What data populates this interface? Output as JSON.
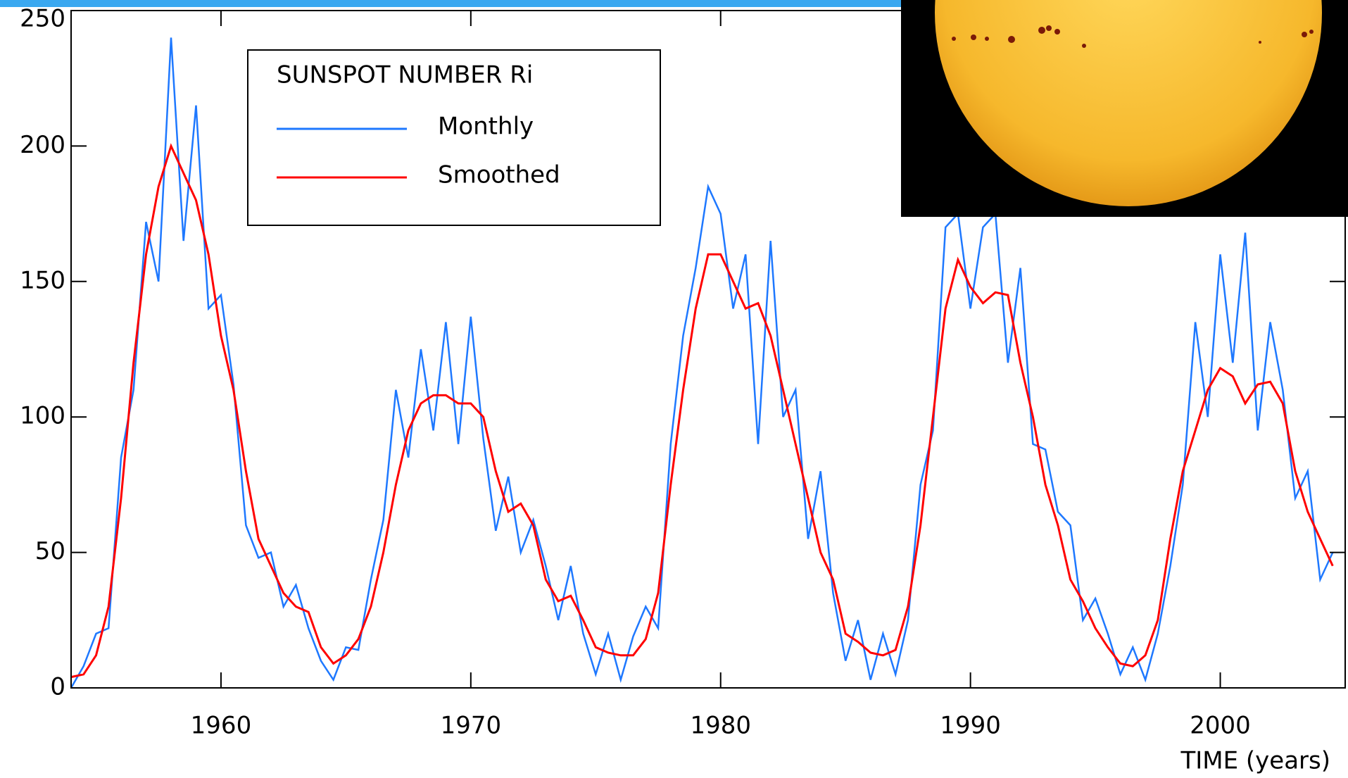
{
  "chart_data": {
    "type": "line",
    "legend_title": "SUNSPOT NUMBER Ri",
    "x_label": "TIME (years)",
    "x": [
      1954,
      1954.5,
      1955,
      1955.5,
      1956,
      1956.5,
      1957,
      1957.5,
      1958,
      1958.5,
      1959,
      1959.5,
      1960,
      1960.5,
      1961,
      1961.5,
      1962,
      1962.5,
      1963,
      1963.5,
      1964,
      1964.5,
      1965,
      1965.5,
      1966,
      1966.5,
      1967,
      1967.5,
      1968,
      1968.5,
      1969,
      1969.5,
      1970,
      1970.5,
      1971,
      1971.5,
      1972,
      1972.5,
      1973,
      1973.5,
      1974,
      1974.5,
      1975,
      1975.5,
      1976,
      1976.5,
      1977,
      1977.5,
      1978,
      1978.5,
      1979,
      1979.5,
      1980,
      1980.5,
      1981,
      1981.5,
      1982,
      1982.5,
      1983,
      1983.5,
      1984,
      1984.5,
      1985,
      1985.5,
      1986,
      1986.5,
      1987,
      1987.5,
      1988,
      1988.5,
      1989,
      1989.5,
      1990,
      1990.5,
      1991,
      1991.5,
      1992,
      1992.5,
      1993,
      1993.5,
      1994,
      1994.5,
      1995,
      1995.5,
      1996,
      1996.5,
      1997,
      1997.5,
      1998,
      1998.5,
      1999,
      1999.5,
      2000,
      2000.5,
      2001,
      2001.5,
      2002,
      2002.5,
      2003,
      2003.5,
      2004,
      2004.5
    ],
    "series": [
      {
        "name": "Monthly",
        "color": "#1e78ff",
        "values": [
          0,
          8,
          20,
          22,
          85,
          110,
          172,
          150,
          240,
          165,
          215,
          140,
          145,
          112,
          60,
          48,
          50,
          30,
          38,
          22,
          10,
          3,
          15,
          14,
          40,
          62,
          110,
          85,
          125,
          95,
          135,
          90,
          137,
          92,
          58,
          78,
          50,
          62,
          45,
          25,
          45,
          20,
          5,
          20,
          3,
          19,
          30,
          22,
          90,
          130,
          155,
          185,
          175,
          140,
          160,
          90,
          165,
          100,
          110,
          55,
          80,
          35,
          10,
          25,
          3,
          20,
          5,
          25,
          75,
          95,
          170,
          175,
          140,
          170,
          175,
          120,
          155,
          90,
          88,
          65,
          60,
          25,
          33,
          20,
          5,
          15,
          3,
          20,
          45,
          75,
          135,
          100,
          160,
          120,
          168,
          95,
          135,
          110,
          70,
          80,
          40,
          50
        ]
      },
      {
        "name": "Smoothed",
        "color": "#ff0000",
        "values": [
          4,
          5,
          12,
          30,
          70,
          120,
          160,
          185,
          200,
          190,
          180,
          160,
          130,
          110,
          80,
          55,
          45,
          35,
          30,
          28,
          15,
          9,
          12,
          18,
          30,
          50,
          75,
          95,
          105,
          108,
          108,
          105,
          105,
          100,
          80,
          65,
          68,
          60,
          40,
          32,
          34,
          25,
          15,
          13,
          12,
          12,
          18,
          35,
          75,
          110,
          140,
          160,
          160,
          150,
          140,
          142,
          130,
          110,
          90,
          70,
          50,
          40,
          20,
          17,
          13,
          12,
          14,
          30,
          60,
          100,
          140,
          158,
          148,
          142,
          146,
          145,
          120,
          100,
          75,
          60,
          40,
          32,
          22,
          15,
          9,
          8,
          12,
          25,
          55,
          80,
          95,
          110,
          118,
          115,
          105,
          112,
          113,
          105,
          80,
          65,
          55,
          45
        ]
      }
    ],
    "xlim": [
      1954,
      2005
    ],
    "ylim": [
      0,
      250
    ],
    "xticks": [
      1960,
      1970,
      1980,
      1990,
      2000
    ],
    "yticks": [
      0,
      50,
      100,
      150,
      200,
      250
    ]
  }
}
